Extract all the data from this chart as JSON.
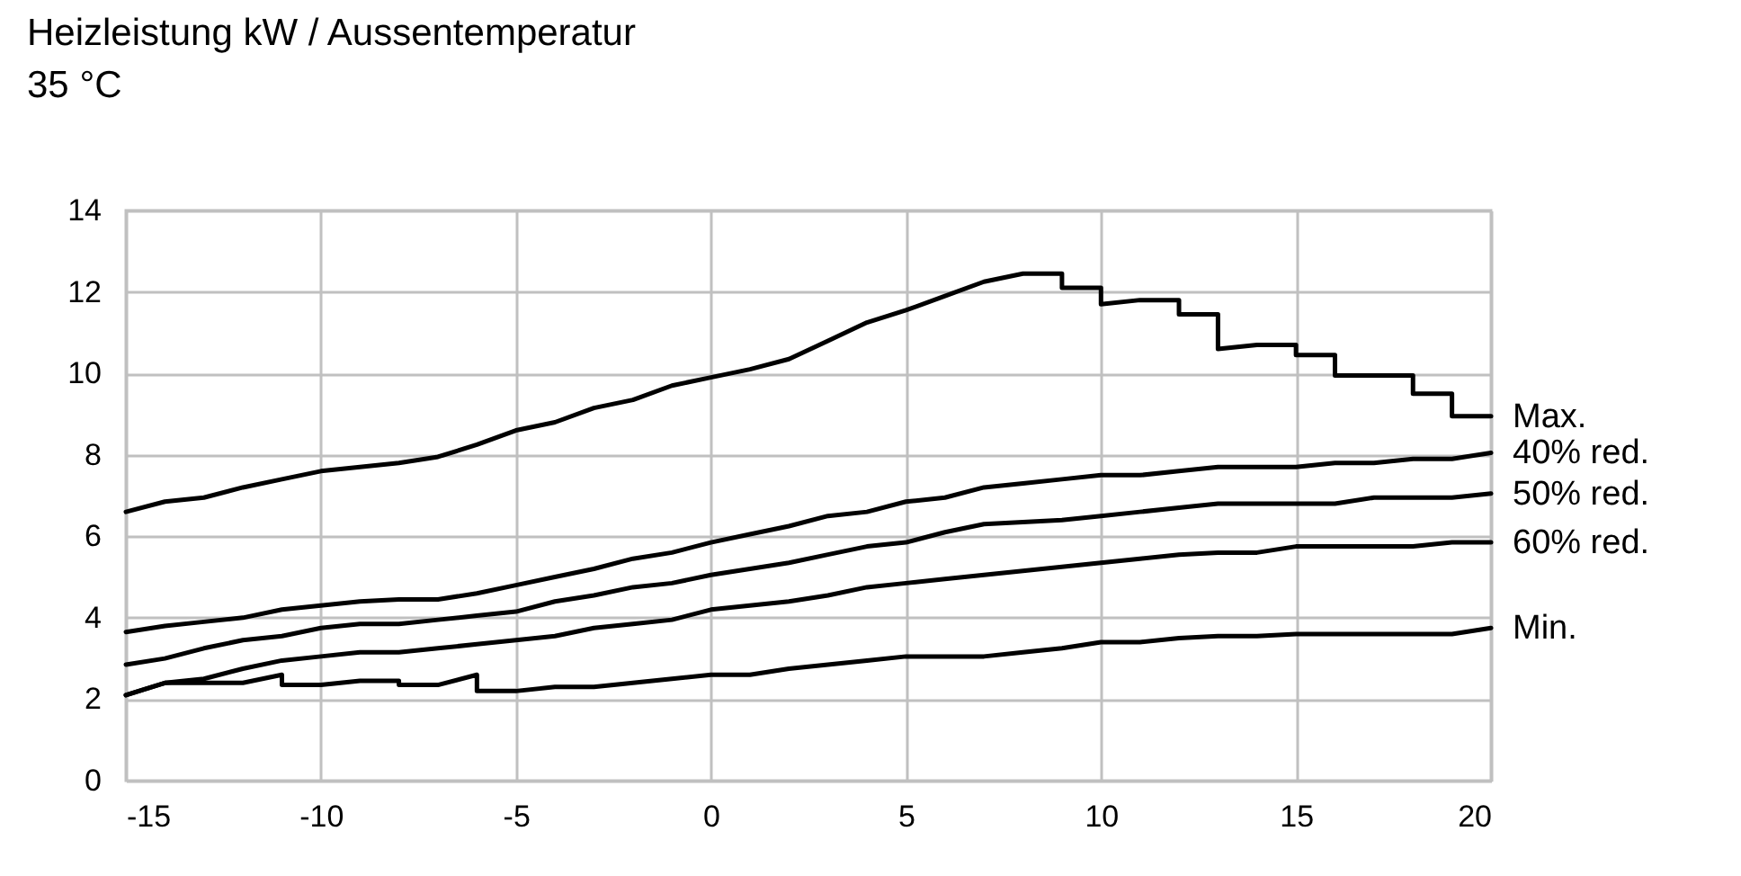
{
  "chart_data": {
    "type": "line",
    "title": "Heizleistung kW / Aussentemperatur",
    "subtitle": "35 °C",
    "xlim": [
      -15,
      20
    ],
    "xticks": [
      -15,
      -10,
      -5,
      0,
      5,
      10,
      15,
      20
    ],
    "ylim": [
      0,
      14
    ],
    "yticks": [
      0,
      2,
      4,
      6,
      8,
      10,
      12,
      14
    ],
    "grid": true,
    "legend": false,
    "line_style": "solid",
    "marker": "none",
    "series": [
      {
        "name": "Max.",
        "color": "#000000",
        "x": [
          -15,
          -14,
          -13,
          -12,
          -11,
          -10,
          -9,
          -8,
          -7,
          -6,
          -5,
          -4,
          -3,
          -2,
          -1,
          0,
          1,
          2,
          3,
          4,
          5,
          6,
          7,
          8,
          9,
          9,
          10,
          10,
          11,
          12,
          12,
          13,
          13,
          14,
          15,
          15,
          16,
          16,
          17,
          18,
          18,
          19,
          19,
          20
        ],
        "values": [
          6.6,
          6.85,
          6.95,
          7.2,
          7.4,
          7.6,
          7.7,
          7.8,
          7.95,
          8.25,
          8.6,
          8.8,
          9.15,
          9.35,
          9.7,
          9.9,
          10.1,
          10.35,
          10.8,
          11.25,
          11.55,
          11.9,
          12.25,
          12.45,
          12.45,
          12.1,
          12.1,
          11.7,
          11.8,
          11.8,
          11.45,
          11.45,
          10.6,
          10.7,
          10.7,
          10.45,
          10.45,
          9.95,
          9.95,
          9.95,
          9.5,
          9.5,
          8.95,
          8.95
        ]
      },
      {
        "name": "40% red.",
        "color": "#000000",
        "x": [
          -15,
          -14,
          -13,
          -12,
          -11,
          -10,
          -9,
          -8,
          -7,
          -6,
          -5,
          -4,
          -3,
          -2,
          -1,
          0,
          1,
          2,
          3,
          4,
          5,
          6,
          7,
          8,
          9,
          10,
          11,
          12,
          13,
          14,
          15,
          16,
          17,
          18,
          19,
          20
        ],
        "values": [
          3.65,
          3.8,
          3.9,
          4.0,
          4.2,
          4.3,
          4.4,
          4.45,
          4.45,
          4.6,
          4.8,
          5.0,
          5.2,
          5.45,
          5.6,
          5.85,
          6.05,
          6.25,
          6.5,
          6.6,
          6.85,
          6.95,
          7.2,
          7.3,
          7.4,
          7.5,
          7.5,
          7.6,
          7.7,
          7.7,
          7.7,
          7.8,
          7.8,
          7.9,
          7.9,
          8.05
        ]
      },
      {
        "name": "50% red.",
        "color": "#000000",
        "x": [
          -15,
          -14,
          -13,
          -12,
          -11,
          -10,
          -9,
          -8,
          -7,
          -6,
          -5,
          -4,
          -3,
          -2,
          -1,
          0,
          1,
          2,
          3,
          4,
          5,
          6,
          7,
          8,
          9,
          10,
          11,
          12,
          13,
          14,
          15,
          16,
          17,
          18,
          19,
          20
        ],
        "values": [
          2.85,
          3.0,
          3.25,
          3.45,
          3.55,
          3.75,
          3.85,
          3.85,
          3.95,
          4.05,
          4.15,
          4.4,
          4.55,
          4.75,
          4.85,
          5.05,
          5.2,
          5.35,
          5.55,
          5.75,
          5.85,
          6.1,
          6.3,
          6.35,
          6.4,
          6.5,
          6.6,
          6.7,
          6.8,
          6.8,
          6.8,
          6.8,
          6.95,
          6.95,
          6.95,
          7.05
        ]
      },
      {
        "name": "60% red.",
        "color": "#000000",
        "x": [
          -15,
          -14,
          -13,
          -12,
          -11,
          -10,
          -9,
          -8,
          -7,
          -6,
          -5,
          -4,
          -3,
          -2,
          -1,
          0,
          1,
          2,
          3,
          4,
          5,
          6,
          7,
          8,
          9,
          10,
          11,
          12,
          13,
          14,
          15,
          16,
          17,
          18,
          19,
          20
        ],
        "values": [
          2.1,
          2.4,
          2.5,
          2.75,
          2.95,
          3.05,
          3.15,
          3.15,
          3.25,
          3.35,
          3.45,
          3.55,
          3.75,
          3.85,
          3.95,
          4.2,
          4.3,
          4.4,
          4.55,
          4.75,
          4.85,
          4.95,
          5.05,
          5.15,
          5.25,
          5.35,
          5.45,
          5.55,
          5.6,
          5.6,
          5.75,
          5.75,
          5.75,
          5.75,
          5.85,
          5.85
        ]
      },
      {
        "name": "Min.",
        "color": "#000000",
        "x": [
          -15,
          -14,
          -13,
          -12,
          -11,
          -11,
          -10,
          -9,
          -8,
          -8,
          -7,
          -6,
          -6,
          -5,
          -4,
          -3,
          -2,
          -1,
          0,
          1,
          2,
          3,
          4,
          5,
          6,
          7,
          8,
          9,
          10,
          11,
          12,
          13,
          14,
          15,
          16,
          17,
          18,
          19,
          20
        ],
        "values": [
          2.1,
          2.4,
          2.4,
          2.4,
          2.6,
          2.35,
          2.35,
          2.45,
          2.45,
          2.35,
          2.35,
          2.6,
          2.2,
          2.2,
          2.3,
          2.3,
          2.4,
          2.5,
          2.6,
          2.6,
          2.75,
          2.85,
          2.95,
          3.05,
          3.05,
          3.05,
          3.15,
          3.25,
          3.4,
          3.4,
          3.5,
          3.55,
          3.55,
          3.6,
          3.6,
          3.6,
          3.6,
          3.6,
          3.75
        ]
      }
    ]
  }
}
